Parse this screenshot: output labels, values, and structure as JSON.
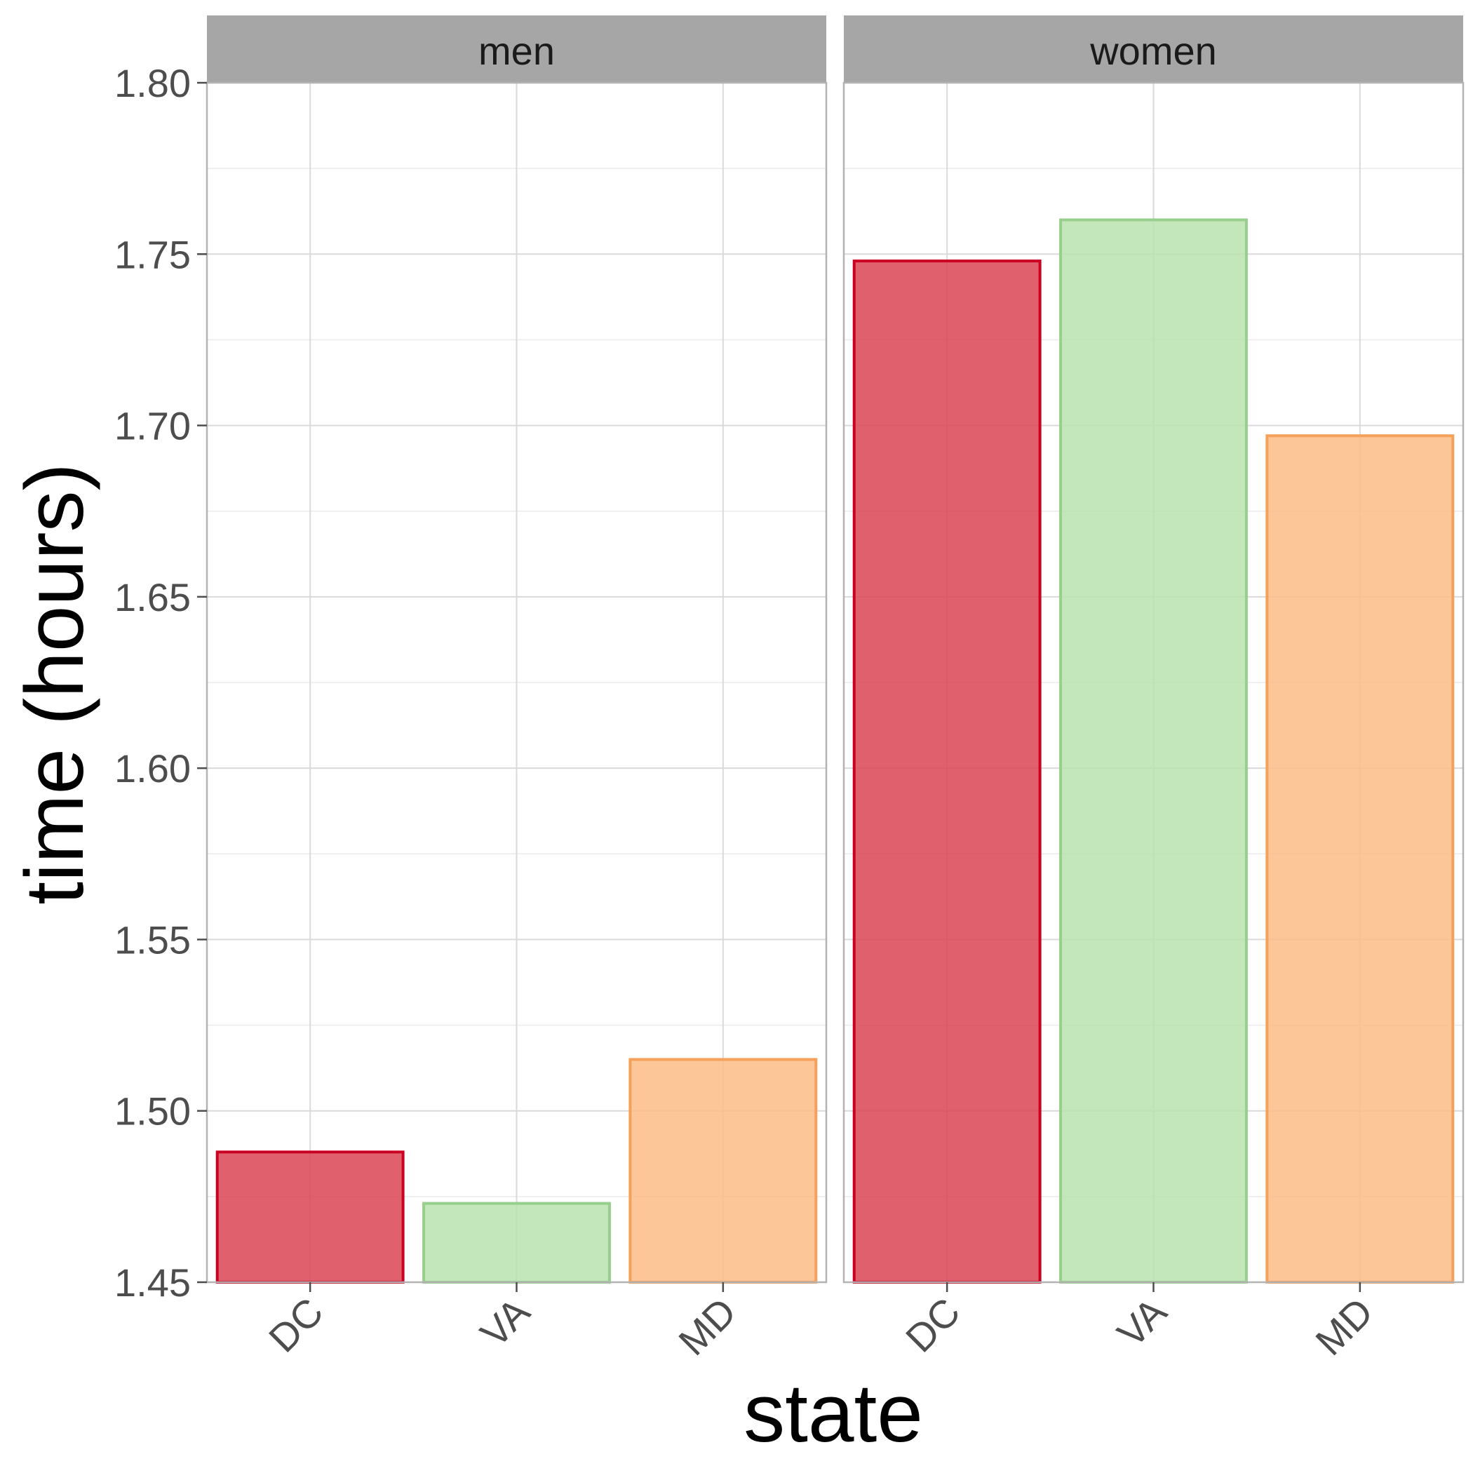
{
  "chart_data": {
    "type": "bar",
    "facets": [
      "men",
      "women"
    ],
    "categories": [
      "DC",
      "VA",
      "MD"
    ],
    "values": {
      "men": [
        1.488,
        1.473,
        1.515
      ],
      "women": [
        1.748,
        1.76,
        1.697
      ]
    },
    "xlabel": "state",
    "ylabel": "time (hours)",
    "ylim": [
      1.45,
      1.8
    ],
    "yticks": [
      "1.45",
      "1.50",
      "1.55",
      "1.60",
      "1.65",
      "1.70",
      "1.75",
      "1.80"
    ],
    "colors": {
      "DC": {
        "fill": "#DA4453",
        "stroke": "#CC0022"
      },
      "VA": {
        "fill": "#B8E2AE",
        "stroke": "#97D08C"
      },
      "MD": {
        "fill": "#FBBC87",
        "stroke": "#F6A05A"
      }
    },
    "grid": true,
    "legend": "none"
  }
}
